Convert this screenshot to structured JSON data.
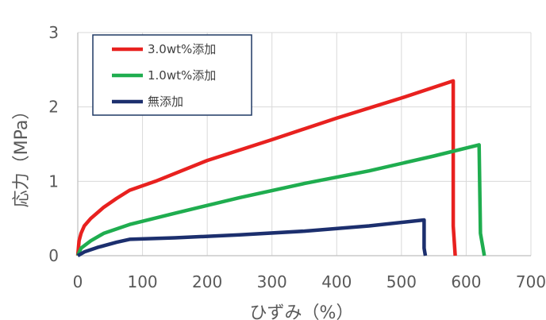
{
  "chart_data": {
    "type": "line",
    "title": "",
    "xlabel": "ひずみ（%）",
    "ylabel": "応力（MPa）",
    "xlim": [
      0,
      700
    ],
    "ylim": [
      0,
      3
    ],
    "x_ticks": [
      "0",
      "100",
      "200",
      "300",
      "400",
      "500",
      "600",
      "700"
    ],
    "y_ticks": [
      "0",
      "1",
      "2",
      "3"
    ],
    "grid": true,
    "legend_position": "top-left",
    "series": [
      {
        "name": "3.0wt%添加",
        "color": "#e8211f",
        "x": [
          0,
          2,
          5,
          10,
          20,
          40,
          60,
          80,
          120,
          200,
          300,
          400,
          500,
          580,
          580,
          583
        ],
        "y": [
          0,
          0.2,
          0.3,
          0.4,
          0.5,
          0.65,
          0.77,
          0.88,
          1.0,
          1.28,
          1.56,
          1.85,
          2.12,
          2.35,
          0.4,
          0
        ]
      },
      {
        "name": "1.0wt%添加",
        "color": "#1fad4f",
        "x": [
          0,
          5,
          20,
          40,
          80,
          150,
          250,
          350,
          450,
          550,
          620,
          622,
          628
        ],
        "y": [
          0,
          0.1,
          0.2,
          0.3,
          0.42,
          0.57,
          0.78,
          0.97,
          1.14,
          1.34,
          1.49,
          0.3,
          0
        ]
      },
      {
        "name": "無添加",
        "color": "#1c2f6e",
        "x": [
          0,
          10,
          30,
          60,
          80,
          150,
          250,
          350,
          450,
          535,
          535,
          537
        ],
        "y": [
          0,
          0.05,
          0.11,
          0.18,
          0.22,
          0.24,
          0.28,
          0.33,
          0.4,
          0.48,
          0.1,
          0
        ]
      }
    ]
  }
}
